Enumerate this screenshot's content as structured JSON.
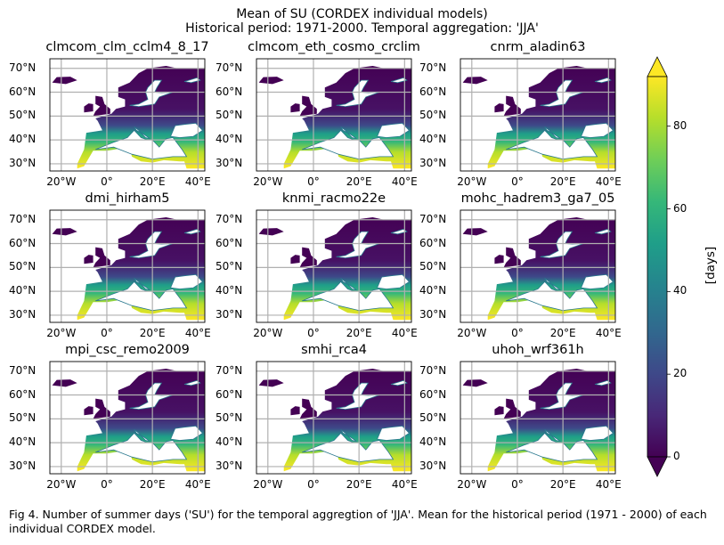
{
  "chart_data": {
    "type": "heatmap",
    "title": "Mean of SU (CORDEX individual models)",
    "subtitle": "Historical period: 1971-2000. Temporal aggregation: 'JJA'",
    "panels": [
      {
        "name": "clmcom_clm_cclm4_8_17",
        "north_low": 2,
        "south_high": 84
      },
      {
        "name": "clmcom_eth_cosmo_crclim",
        "north_low": 2,
        "south_high": 82
      },
      {
        "name": "cnrm_aladin63",
        "north_low": 3,
        "south_high": 82
      },
      {
        "name": "dmi_hirham5",
        "north_low": 2,
        "south_high": 80
      },
      {
        "name": "knmi_racmo22e",
        "north_low": 2,
        "south_high": 83
      },
      {
        "name": "mohc_hadrem3_ga7_05",
        "north_low": 4,
        "south_high": 85
      },
      {
        "name": "mpi_csc_remo2009",
        "north_low": 2,
        "south_high": 86
      },
      {
        "name": "smhi_rca4",
        "north_low": 2,
        "south_high": 84
      },
      {
        "name": "uhoh_wrf361h",
        "north_low": 2,
        "south_high": 83
      }
    ],
    "x_ticks": [
      "20°W",
      "0°",
      "20°E",
      "40°E"
    ],
    "y_ticks": [
      "70°N",
      "60°N",
      "50°N",
      "40°N",
      "30°N"
    ],
    "xlim": [
      -25,
      43
    ],
    "ylim": [
      27,
      74
    ],
    "colorbar": {
      "label": "[days]",
      "range": [
        0,
        92
      ],
      "ticks": [
        "80",
        "60",
        "40",
        "20",
        "0"
      ],
      "tick_values": [
        80,
        60,
        40,
        20,
        0
      ],
      "extend": "both",
      "colormap": [
        "#440154",
        "#482878",
        "#3e4989",
        "#31688e",
        "#26828e",
        "#1f9e89",
        "#35b779",
        "#6ece58",
        "#b5de2b",
        "#fde725"
      ]
    },
    "grid": true
  },
  "caption": "Fig 4. Number of summer days ('SU') for the temporal aggregtion of 'JJA'. Mean for the historical period (1971 - 2000) of each individual CORDEX model."
}
